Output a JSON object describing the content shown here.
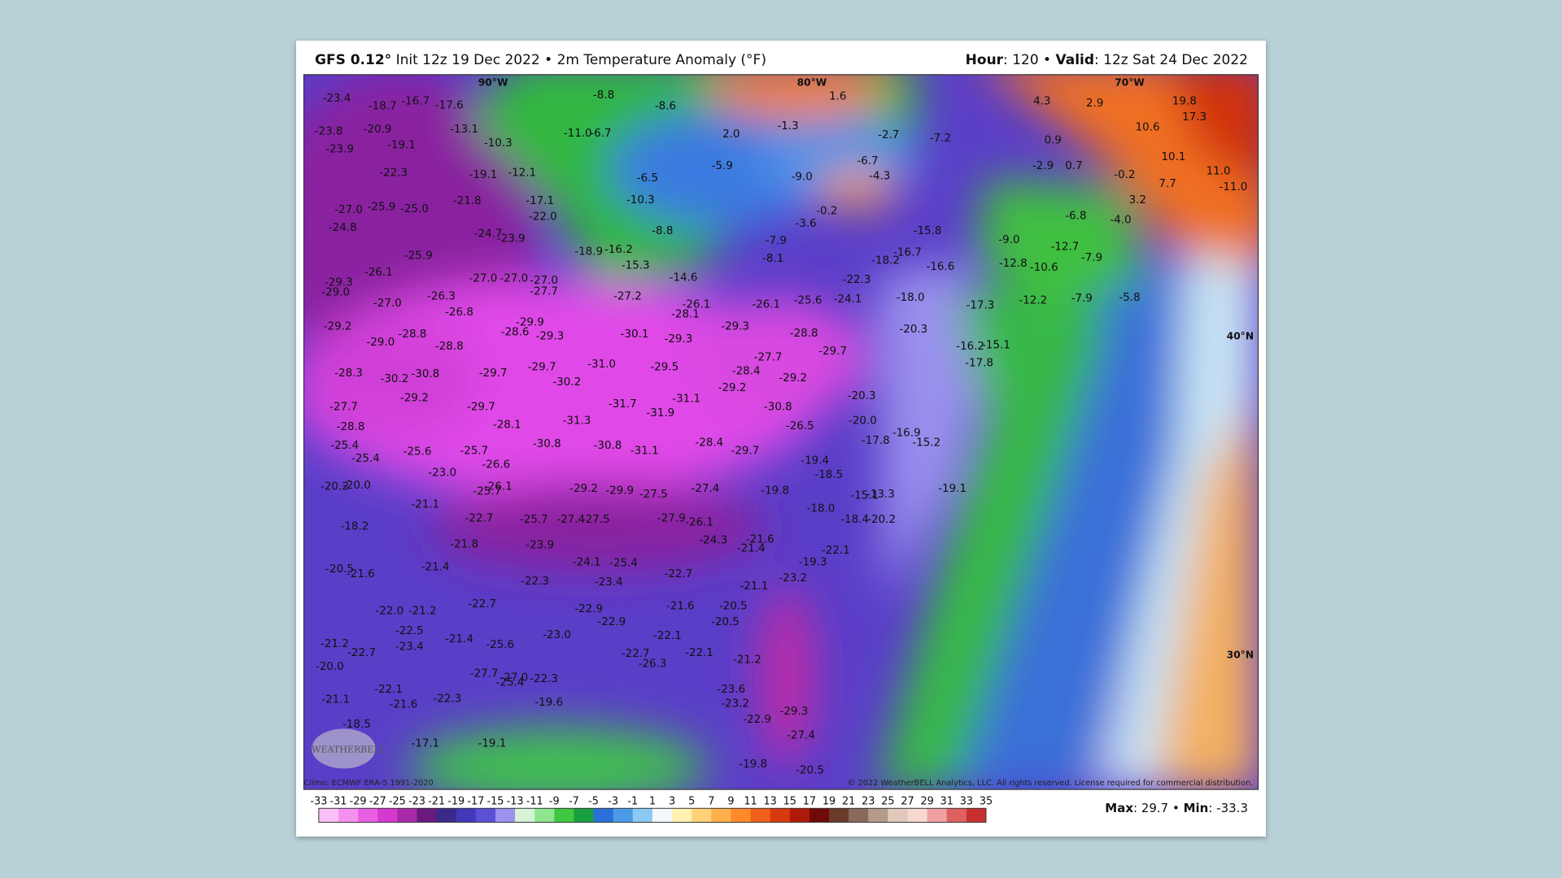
{
  "header": {
    "model": "GFS 0.12°",
    "run": "Init 12z 19 Dec 2022 • 2m Temperature Anomaly (°F)",
    "hour_label": "Hour",
    "hour": ": 120 • ",
    "valid_label": "Valid",
    "valid": ": 12z Sat 24 Dec 2022"
  },
  "map": {
    "gridlabels": [
      "90°W",
      "80°W",
      "70°W",
      "40°N",
      "30°N"
    ],
    "labels": [
      "-23.4",
      "-18.7",
      "-16.7",
      "-17.6",
      "-8.8",
      "-8.6",
      "1.6",
      "4.3",
      "2.9",
      "19.8",
      "17.3",
      "-23.8",
      "-20.9",
      "-13.1",
      "-11.0",
      "-6.7",
      "2.0",
      "-1.3",
      "-2.7",
      "-7.2",
      "10.6",
      "-23.9",
      "-19.1",
      "-10.3",
      "0.9",
      "-6.7",
      "-2.9",
      "0.7",
      "10.1",
      "-22.3",
      "-19.1",
      "-12.1",
      "-6.5",
      "-5.9",
      "-9.0",
      "-4.3",
      "-0.2",
      "11.0",
      "-21.8",
      "-17.1",
      "-10.3",
      "-27.0",
      "-25.9",
      "-25.0",
      "7.7",
      "-11.0",
      "3.2",
      "-22.0",
      "-24.8",
      "-24.7",
      "-23.9",
      "-8.8",
      "-3.6",
      "-0.2",
      "-6.8",
      "-4.0",
      "-15.8",
      "-25.9",
      "-18.9",
      "-16.2",
      "-15.3",
      "-7.9",
      "-8.1",
      "-9.0",
      "-12.7",
      "-7.9",
      "-26.1",
      "-27.0",
      "-27.0",
      "-27.0",
      "-14.6",
      "-22.3",
      "-18.2",
      "-16.7",
      "-16.6",
      "-12.8",
      "-10.6",
      "-29.3",
      "-29.0",
      "-26.3",
      "-27.7",
      "-27.2",
      "-26.1",
      "-26.1",
      "-25.6",
      "-24.1",
      "-18.0",
      "-12.2",
      "-7.9",
      "-5.8",
      "-27.0",
      "-26.8",
      "-28.1",
      "-17.3",
      "-29.2",
      "-28.8",
      "-29.9",
      "-29.3",
      "-20.3",
      "-28.6",
      "-29.3",
      "-30.1",
      "-29.3",
      "-28.8",
      "-29.0",
      "-28.8",
      "-29.7",
      "-16.2",
      "-15.1",
      "-31.0",
      "-29.5",
      "-27.7",
      "-17.8",
      "-28.3",
      "-30.2",
      "-30.8",
      "-29.7",
      "-29.7",
      "-30.2",
      "-28.4",
      "-29.2",
      "-20.3",
      "-29.2",
      "-27.7",
      "-29.7",
      "-31.7",
      "-31.9",
      "-31.1",
      "-29.2",
      "-30.8",
      "-28.8",
      "-28.1",
      "-31.3",
      "-26.5",
      "-20.0",
      "-16.9",
      "-25.4",
      "-25.4",
      "-25.6",
      "-30.8",
      "-30.8",
      "-31.1",
      "-28.4",
      "-29.7",
      "-17.8",
      "-15.2",
      "-23.0",
      "-25.7",
      "-26.6",
      "-19.4",
      "-18.5",
      "-20.2",
      "-20.0",
      "-26.1",
      "-25.7",
      "-29.2",
      "-29.9",
      "-27.5",
      "-27.4",
      "-19.8",
      "-15.1",
      "-13.3",
      "-19.1",
      "-21.1",
      "-22.7",
      "-25.7",
      "-27.4",
      "-27.5",
      "-27.9",
      "-26.1",
      "-18.0",
      "-18.4",
      "-20.2",
      "-18.2",
      "-21.8",
      "-23.9",
      "-24.3",
      "-21.6",
      "-21.4",
      "-22.1",
      "-20.5",
      "-21.6",
      "-21.4",
      "-24.1",
      "-25.4",
      "-22.7",
      "-19.3",
      "-22.3",
      "-23.4",
      "-21.1",
      "-23.2",
      "-22.7",
      "-22.0",
      "-21.2",
      "-22.9",
      "-21.6",
      "-20.5",
      "-22.9",
      "-20.5",
      "-22.5",
      "-23.0",
      "-22.1",
      "-21.2",
      "-23.4",
      "-21.4",
      "-25.6",
      "-22.7",
      "-22.7",
      "-22.1",
      "-21.2",
      "-26.3",
      "-20.0",
      "-27.7",
      "-27.0",
      "-25.4",
      "-22.3",
      "-23.6",
      "-22.1",
      "-21.6",
      "-22.3",
      "-19.6",
      "-23.2",
      "-29.3",
      "-21.1",
      "-18.5",
      "-22.9",
      "-27.4",
      "-17.1",
      "-19.1",
      "-19.8",
      "-20.5"
    ],
    "logo": "WEATHERBELL",
    "climo": "Climo: ECMWF ERA-5 1991-2020",
    "copyright": "© 2022 WeatherBELL Analytics, LLC. All rights reserved. License required for commercial distribution."
  },
  "colorbar": {
    "ticks": [
      -33,
      -31,
      -29,
      -27,
      -25,
      -23,
      -21,
      -19,
      -17,
      -15,
      -13,
      -11,
      -9,
      -7,
      -5,
      -3,
      -1,
      1,
      3,
      5,
      7,
      9,
      11,
      13,
      15,
      17,
      19,
      21,
      23,
      25,
      27,
      29,
      31,
      33,
      35
    ],
    "colors": [
      "#fcc0f8",
      "#f590ef",
      "#e95fe4",
      "#d43ad0",
      "#a82aa8",
      "#6a1a7c",
      "#3a2a8a",
      "#4238b8",
      "#5a50d8",
      "#9a92ee",
      "#d8f2d8",
      "#8ee68e",
      "#40c840",
      "#18a040",
      "#2a70d8",
      "#4a9ae8",
      "#8cc8f4",
      "#f4f8fc",
      "#fff2b0",
      "#ffd27a",
      "#ffb04a",
      "#ff8a2a",
      "#f0601a",
      "#d83a10",
      "#b01a0a",
      "#700a08",
      "#6a3a2a",
      "#8a6a5a",
      "#b49a8a",
      "#e0c8bc",
      "#f6d8d0",
      "#f0a0a0",
      "#e06060",
      "#c83030"
    ]
  },
  "footer": {
    "max_label": "Max",
    "max": ": 29.7 • ",
    "min_label": "Min",
    "min": ": -33.3"
  }
}
